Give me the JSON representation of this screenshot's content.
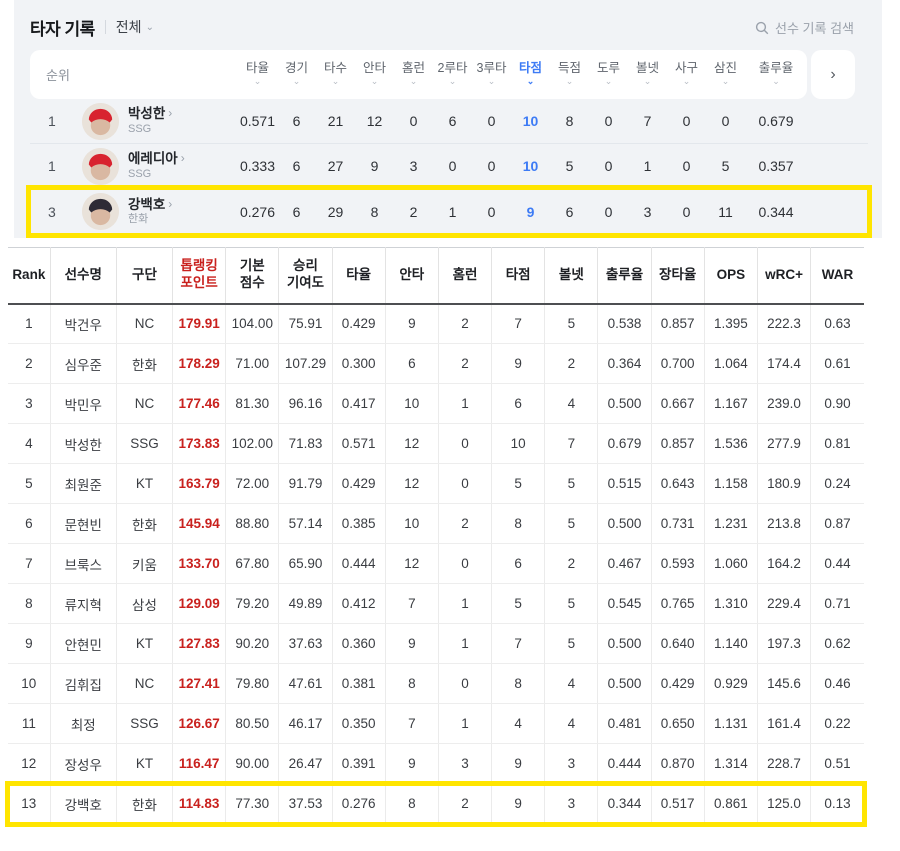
{
  "header": {
    "title": "타자 기록",
    "filter": "전체",
    "search": "선수 기록 검색"
  },
  "colors": {
    "accent_blue": "#3d7bf5",
    "accent_red": "#c9211e",
    "highlight_yellow": "#ffe500"
  },
  "top_table": {
    "rank_header": "순위",
    "sorted_column": "타점",
    "next_icon": "›",
    "columns": [
      "타율",
      "경기",
      "타수",
      "안타",
      "홈런",
      "2루타",
      "3루타",
      "타점",
      "득점",
      "도루",
      "볼넷",
      "사구",
      "삼진",
      "출루율"
    ],
    "rows": [
      {
        "rank": "1",
        "name": "박성한",
        "team": "SSG",
        "cap_color": "#d8232f",
        "highlight": false,
        "stats": [
          "0.571",
          "6",
          "21",
          "12",
          "0",
          "6",
          "0",
          "10",
          "8",
          "0",
          "7",
          "0",
          "0",
          "0.679"
        ]
      },
      {
        "rank": "1",
        "name": "에레디아",
        "team": "SSG",
        "cap_color": "#d8232f",
        "highlight": false,
        "stats": [
          "0.333",
          "6",
          "27",
          "9",
          "3",
          "0",
          "0",
          "10",
          "5",
          "0",
          "1",
          "0",
          "5",
          "0.357"
        ]
      },
      {
        "rank": "3",
        "name": "강백호",
        "team": "한화",
        "cap_color": "#2e2b36",
        "highlight": true,
        "stats": [
          "0.276",
          "6",
          "29",
          "8",
          "2",
          "1",
          "0",
          "9",
          "6",
          "0",
          "3",
          "0",
          "11",
          "0.344"
        ]
      }
    ]
  },
  "bottom_table": {
    "columns": [
      "Rank",
      "선수명",
      "구단",
      "톱랭킹\n포인트",
      "기본\n점수",
      "승리\n기여도",
      "타율",
      "안타",
      "홈런",
      "타점",
      "볼넷",
      "출루율",
      "장타율",
      "OPS",
      "wRC+",
      "WAR"
    ],
    "red_column_index": 3,
    "highlight_row_index": 12,
    "rows": [
      [
        "1",
        "박건우",
        "NC",
        "179.91",
        "104.00",
        "75.91",
        "0.429",
        "9",
        "2",
        "7",
        "5",
        "0.538",
        "0.857",
        "1.395",
        "222.3",
        "0.63"
      ],
      [
        "2",
        "심우준",
        "한화",
        "178.29",
        "71.00",
        "107.29",
        "0.300",
        "6",
        "2",
        "9",
        "2",
        "0.364",
        "0.700",
        "1.064",
        "174.4",
        "0.61"
      ],
      [
        "3",
        "박민우",
        "NC",
        "177.46",
        "81.30",
        "96.16",
        "0.417",
        "10",
        "1",
        "6",
        "4",
        "0.500",
        "0.667",
        "1.167",
        "239.0",
        "0.90"
      ],
      [
        "4",
        "박성한",
        "SSG",
        "173.83",
        "102.00",
        "71.83",
        "0.571",
        "12",
        "0",
        "10",
        "7",
        "0.679",
        "0.857",
        "1.536",
        "277.9",
        "0.81"
      ],
      [
        "5",
        "최원준",
        "KT",
        "163.79",
        "72.00",
        "91.79",
        "0.429",
        "12",
        "0",
        "5",
        "5",
        "0.515",
        "0.643",
        "1.158",
        "180.9",
        "0.24"
      ],
      [
        "6",
        "문현빈",
        "한화",
        "145.94",
        "88.80",
        "57.14",
        "0.385",
        "10",
        "2",
        "8",
        "5",
        "0.500",
        "0.731",
        "1.231",
        "213.8",
        "0.87"
      ],
      [
        "7",
        "브룩스",
        "키움",
        "133.70",
        "67.80",
        "65.90",
        "0.444",
        "12",
        "0",
        "6",
        "2",
        "0.467",
        "0.593",
        "1.060",
        "164.2",
        "0.44"
      ],
      [
        "8",
        "류지혁",
        "삼성",
        "129.09",
        "79.20",
        "49.89",
        "0.412",
        "7",
        "1",
        "5",
        "5",
        "0.545",
        "0.765",
        "1.310",
        "229.4",
        "0.71"
      ],
      [
        "9",
        "안현민",
        "KT",
        "127.83",
        "90.20",
        "37.63",
        "0.360",
        "9",
        "1",
        "7",
        "5",
        "0.500",
        "0.640",
        "1.140",
        "197.3",
        "0.62"
      ],
      [
        "10",
        "김휘집",
        "NC",
        "127.41",
        "79.80",
        "47.61",
        "0.381",
        "8",
        "0",
        "8",
        "4",
        "0.500",
        "0.429",
        "0.929",
        "145.6",
        "0.46"
      ],
      [
        "11",
        "최정",
        "SSG",
        "126.67",
        "80.50",
        "46.17",
        "0.350",
        "7",
        "1",
        "4",
        "4",
        "0.481",
        "0.650",
        "1.131",
        "161.4",
        "0.22"
      ],
      [
        "12",
        "장성우",
        "KT",
        "116.47",
        "90.00",
        "26.47",
        "0.391",
        "9",
        "3",
        "9",
        "3",
        "0.444",
        "0.870",
        "1.314",
        "228.7",
        "0.51"
      ],
      [
        "13",
        "강백호",
        "한화",
        "114.83",
        "77.30",
        "37.53",
        "0.276",
        "8",
        "2",
        "9",
        "3",
        "0.344",
        "0.517",
        "0.861",
        "125.0",
        "0.13"
      ]
    ]
  }
}
